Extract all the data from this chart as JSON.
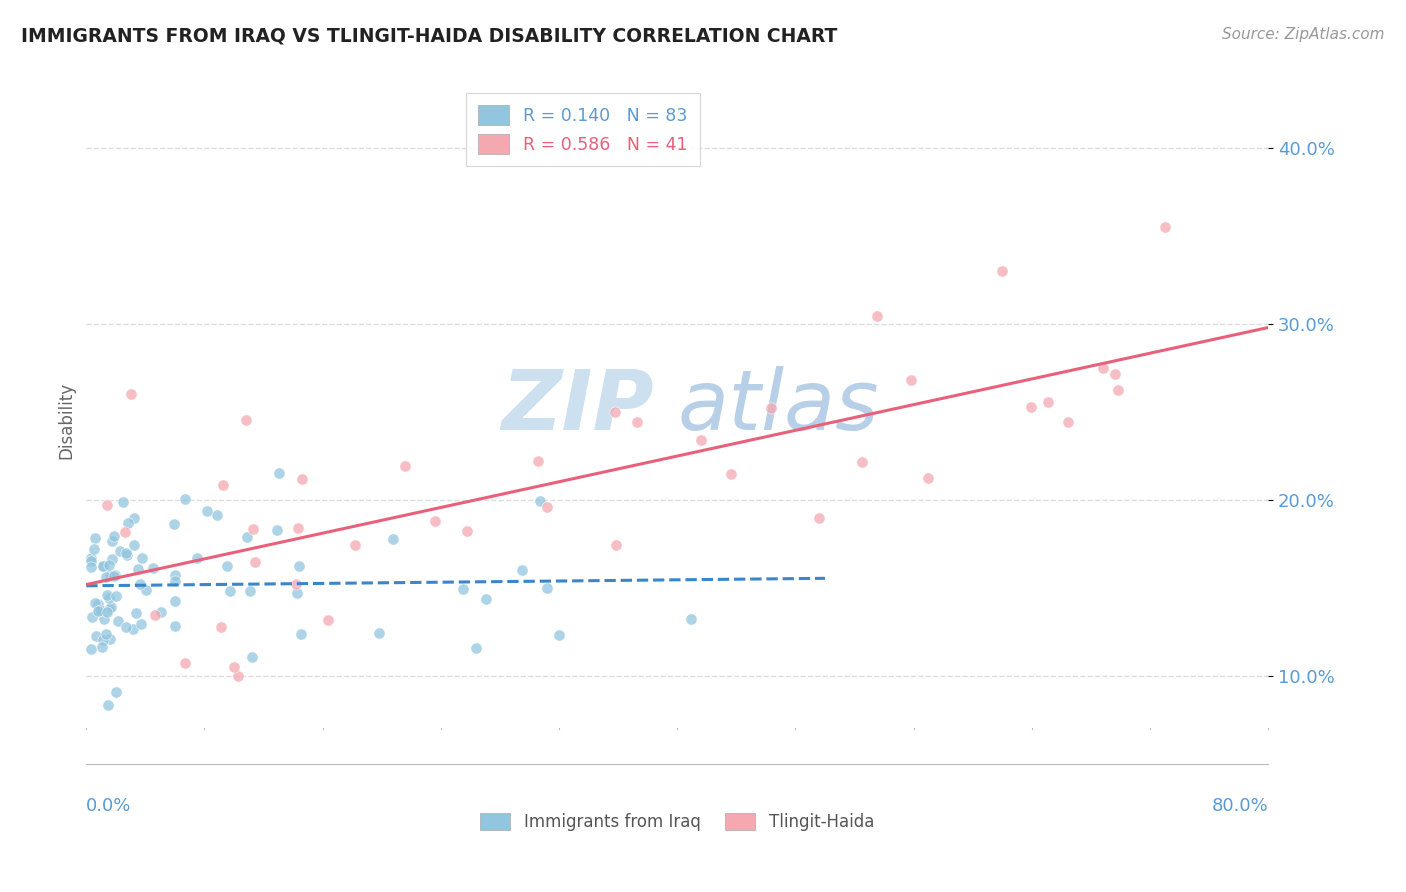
{
  "title": "IMMIGRANTS FROM IRAQ VS TLINGIT-HAIDA DISABILITY CORRELATION CHART",
  "source_text": "Source: ZipAtlas.com",
  "ylabel": "Disability",
  "yticks": [
    0.1,
    0.2,
    0.3,
    0.4
  ],
  "ytick_labels": [
    "10.0%",
    "20.0%",
    "30.0%",
    "40.0%"
  ],
  "xlim": [
    0.0,
    0.8
  ],
  "ylim": [
    0.05,
    0.44
  ],
  "legend_label_iraq": "R = 0.140   N = 83",
  "legend_label_tlingit": "R = 0.586   N = 41",
  "iraq_color": "#92c5de",
  "tlingit_color": "#f4a9b0",
  "iraq_line_color": "#3a86c8",
  "tlingit_line_color": "#e8607a",
  "background_color": "#ffffff",
  "grid_color": "#dddddd",
  "tick_color": "#5b9bd5",
  "title_color": "#222222",
  "source_color": "#999999",
  "ylabel_color": "#666666",
  "watermark_color": "#cde0f0",
  "iraq_line_start": 0.0,
  "iraq_line_end": 0.5,
  "iraq_line_y_start": 0.155,
  "iraq_line_y_end": 0.172,
  "tlingit_line_start": 0.0,
  "tlingit_line_end": 0.8,
  "tlingit_line_y_start": 0.155,
  "tlingit_line_y_end": 0.265
}
